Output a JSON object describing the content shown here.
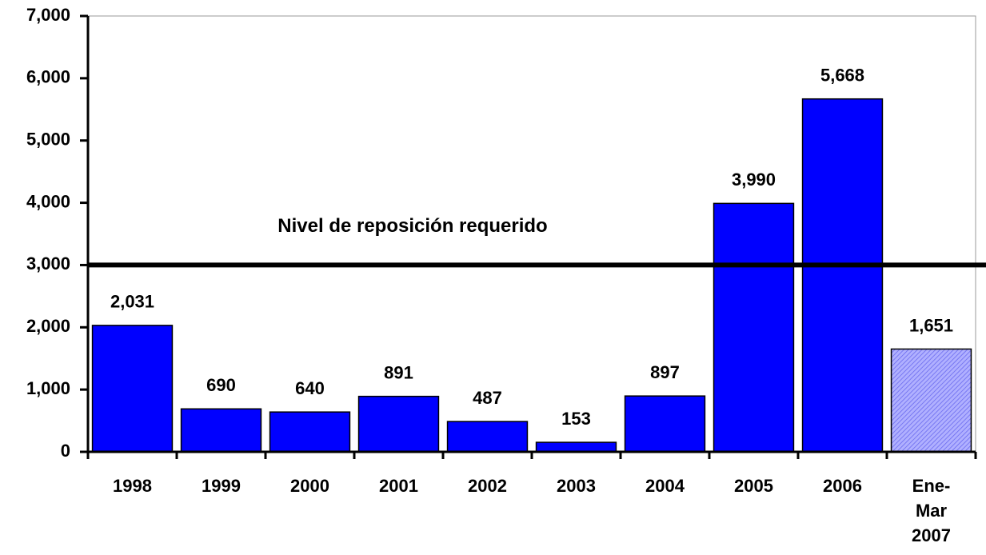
{
  "chart_data": {
    "type": "bar",
    "categories": [
      "1998",
      "1999",
      "2000",
      "2001",
      "2002",
      "2003",
      "2004",
      "2005",
      "2006",
      "Ene-Mar 2007"
    ],
    "values": [
      2031,
      690,
      640,
      891,
      487,
      153,
      897,
      3990,
      5668,
      1651
    ],
    "value_labels": [
      "2,031",
      "690",
      "640",
      "891",
      "487",
      "153",
      "897",
      "3,990",
      "5,668",
      "1,651"
    ],
    "colors": [
      "#0000ff",
      "#0000ff",
      "#0000ff",
      "#0000ff",
      "#0000ff",
      "#0000ff",
      "#0000ff",
      "#0000ff",
      "#0000ff",
      "#9999ff"
    ],
    "patterns": [
      "solid",
      "solid",
      "solid",
      "solid",
      "solid",
      "solid",
      "solid",
      "solid",
      "solid",
      "hatch"
    ],
    "ylim": [
      0,
      7000
    ],
    "yticks": [
      0,
      {
        "value": 1000,
        "label": "1,000"
      },
      {
        "value": 2000,
        "label": "2,000"
      },
      {
        "value": 3000,
        "label": "3,000"
      },
      {
        "value": 4000,
        "label": "4,000"
      },
      {
        "value": 5000,
        "label": "5,000"
      },
      {
        "value": 6000,
        "label": "6,000"
      },
      {
        "value": 7000,
        "label": "7,000"
      }
    ],
    "reference_line": {
      "value": 3000,
      "label": "Nivel de reposición requerido"
    }
  }
}
